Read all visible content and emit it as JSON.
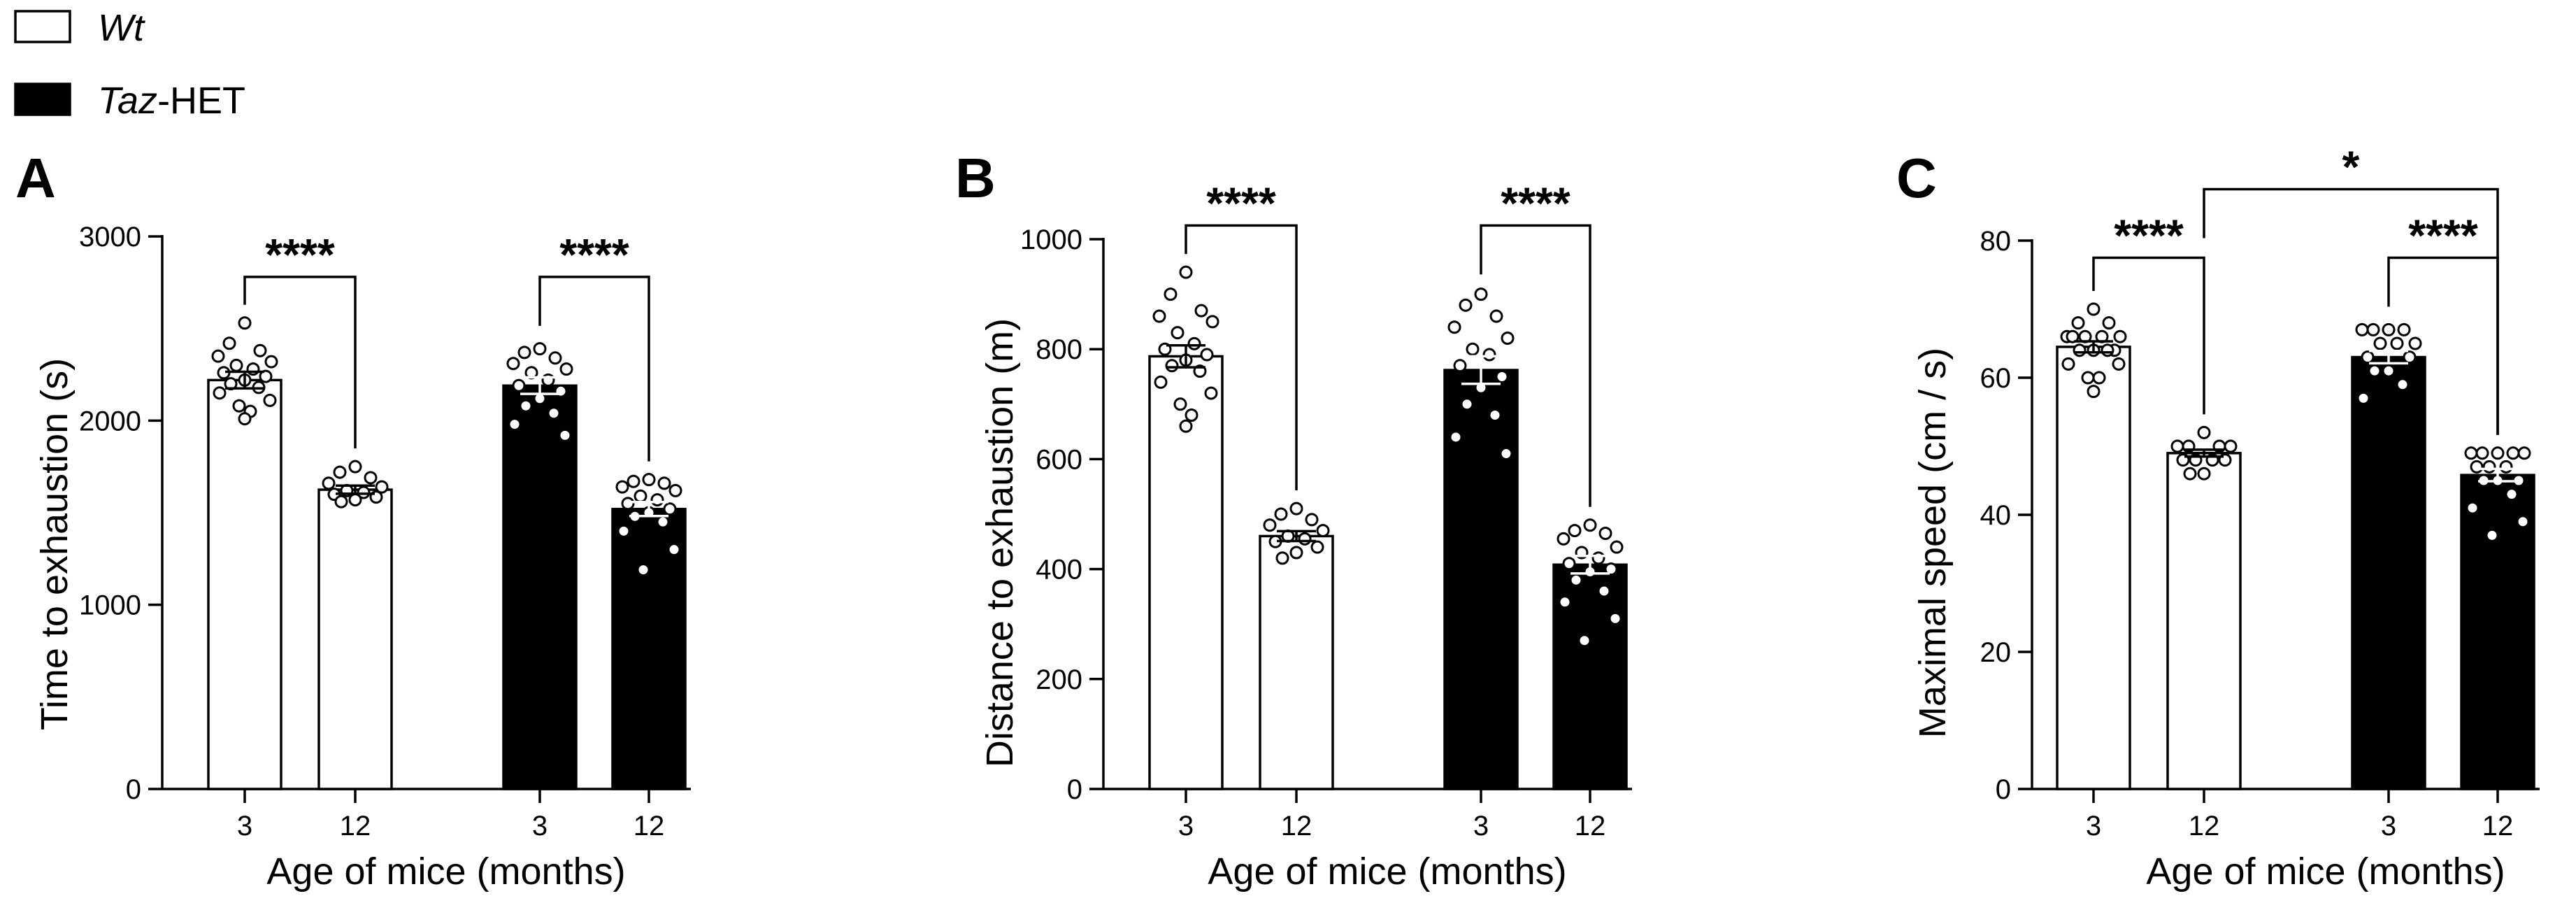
{
  "legend": {
    "entries": [
      {
        "label": "Wt",
        "fill": "#ffffff",
        "italic_part": "Wt",
        "rest": ""
      },
      {
        "label": "Taz-HET",
        "fill": "#000000",
        "italic_part": "Taz",
        "rest": "-HET"
      }
    ]
  },
  "colors": {
    "wt_fill": "#ffffff",
    "het_fill": "#000000",
    "stroke": "#000000"
  },
  "chart_data": [
    {
      "type": "bar",
      "panel": "A",
      "xlabel": "Age of mice (months)",
      "ylabel": "Time to exhaustion (s)",
      "ylim": [
        0,
        3000
      ],
      "yticks": [
        0,
        1000,
        2000,
        3000
      ],
      "ytick_labels": [
        "0",
        "1000",
        "2000",
        "3000"
      ],
      "groups": [
        {
          "name": "Wt",
          "fill": "#ffffff",
          "categories": [
            "3",
            "12"
          ]
        },
        {
          "name": "Taz-HET",
          "fill": "#000000",
          "categories": [
            "3",
            "12"
          ]
        }
      ],
      "bars": [
        {
          "group": "Wt",
          "category": "3",
          "mean": 2220,
          "sem": 45,
          "points": [
            2530,
            2420,
            2380,
            2350,
            2320,
            2300,
            2280,
            2260,
            2240,
            2220,
            2200,
            2180,
            2150,
            2110,
            2080,
            2050,
            2010
          ]
        },
        {
          "group": "Wt",
          "category": "12",
          "mean": 1625,
          "sem": 22,
          "points": [
            1750,
            1720,
            1690,
            1660,
            1640,
            1620,
            1610,
            1600,
            1585,
            1570,
            1560
          ]
        },
        {
          "group": "Taz-HET",
          "category": "3",
          "mean": 2190,
          "sem": 45,
          "points": [
            2390,
            2370,
            2340,
            2310,
            2280,
            2260,
            2220,
            2190,
            2160,
            2120,
            2080,
            2040,
            1980,
            1920
          ]
        },
        {
          "group": "Taz-HET",
          "category": "12",
          "mean": 1520,
          "sem": 38,
          "points": [
            1680,
            1670,
            1660,
            1640,
            1620,
            1590,
            1570,
            1550,
            1520,
            1500,
            1480,
            1450,
            1400,
            1300,
            1190
          ]
        }
      ],
      "comparisons": [
        {
          "from": 0,
          "to": 1,
          "label": "****",
          "y": 2780
        },
        {
          "from": 2,
          "to": 3,
          "label": "****",
          "y": 2780
        }
      ]
    },
    {
      "type": "bar",
      "panel": "B",
      "xlabel": "Age of mice (months)",
      "ylabel": "Distance to exhaustion (m)",
      "ylim": [
        0,
        1000
      ],
      "yticks": [
        0,
        200,
        400,
        600,
        800,
        1000
      ],
      "ytick_labels": [
        "0",
        "200",
        "400",
        "600",
        "800",
        "1000"
      ],
      "groups": [
        {
          "name": "Wt",
          "fill": "#ffffff",
          "categories": [
            "3",
            "12"
          ]
        },
        {
          "name": "Taz-HET",
          "fill": "#000000",
          "categories": [
            "3",
            "12"
          ]
        }
      ],
      "bars": [
        {
          "group": "Wt",
          "category": "3",
          "mean": 787,
          "sem": 20,
          "points": [
            940,
            900,
            870,
            860,
            850,
            830,
            810,
            800,
            790,
            780,
            770,
            760,
            740,
            720,
            700,
            680,
            660
          ]
        },
        {
          "group": "Wt",
          "category": "12",
          "mean": 460,
          "sem": 9,
          "points": [
            510,
            500,
            490,
            480,
            470,
            460,
            455,
            450,
            440,
            430,
            420
          ]
        },
        {
          "group": "Taz-HET",
          "category": "3",
          "mean": 762,
          "sem": 25,
          "points": [
            900,
            880,
            860,
            840,
            820,
            800,
            790,
            770,
            750,
            730,
            700,
            680,
            640,
            610
          ]
        },
        {
          "group": "Taz-HET",
          "category": "12",
          "mean": 408,
          "sem": 16,
          "points": [
            480,
            470,
            465,
            455,
            440,
            430,
            420,
            410,
            400,
            395,
            380,
            360,
            340,
            310,
            270
          ]
        }
      ],
      "comparisons": [
        {
          "from": 0,
          "to": 1,
          "label": "****",
          "y": 1025
        },
        {
          "from": 2,
          "to": 3,
          "label": "****",
          "y": 1025
        }
      ]
    },
    {
      "type": "bar",
      "panel": "C",
      "xlabel": "Age of mice (months)",
      "ylabel": "Maximal speed (cm / s)",
      "ylim": [
        0,
        80
      ],
      "yticks": [
        0,
        20,
        40,
        60,
        80
      ],
      "ytick_labels": [
        "0",
        "20",
        "40",
        "60",
        "80"
      ],
      "groups": [
        {
          "name": "Wt",
          "fill": "#ffffff",
          "categories": [
            "3",
            "12"
          ]
        },
        {
          "name": "Taz-HET",
          "fill": "#000000",
          "categories": [
            "3",
            "12"
          ]
        }
      ],
      "bars": [
        {
          "group": "Wt",
          "category": "3",
          "mean": 64.5,
          "sem": 0.8,
          "points": [
            70,
            68,
            68,
            66,
            66,
            66,
            66,
            66,
            64,
            64,
            64,
            64,
            62,
            62,
            60,
            60,
            58
          ]
        },
        {
          "group": "Wt",
          "category": "12",
          "mean": 49,
          "sem": 0.5,
          "points": [
            52,
            50,
            50,
            50,
            50,
            48,
            48,
            48,
            48,
            46,
            46
          ]
        },
        {
          "group": "Taz-HET",
          "category": "3",
          "mean": 63,
          "sem": 0.9,
          "points": [
            67,
            67,
            67,
            67,
            65,
            65,
            65,
            63,
            63,
            61,
            61,
            59,
            57
          ]
        },
        {
          "group": "Taz-HET",
          "category": "12",
          "mean": 45.8,
          "sem": 0.9,
          "points": [
            49,
            49,
            49,
            49,
            49,
            47,
            47,
            47,
            45,
            45,
            45,
            43,
            41,
            39,
            37
          ]
        }
      ],
      "comparisons": [
        {
          "from": 0,
          "to": 1,
          "label": "****",
          "y": 77.5
        },
        {
          "from": 2,
          "to": 3,
          "label": "****",
          "y": 77.5
        },
        {
          "from": 1,
          "to": 3,
          "label": "*",
          "y": 87.5
        }
      ]
    }
  ]
}
